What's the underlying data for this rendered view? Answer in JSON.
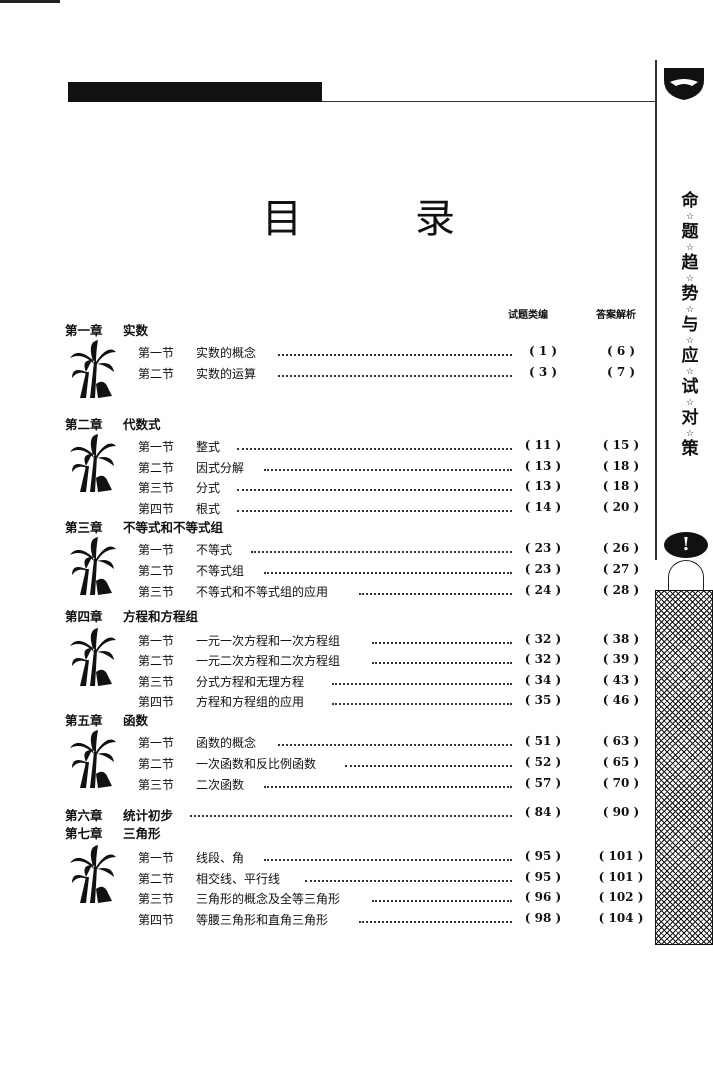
{
  "page": {
    "title_left": "目",
    "title_right": "录",
    "side_banner": [
      "命",
      "题",
      "趋",
      "势",
      "与",
      "应",
      "试",
      "对",
      "策"
    ],
    "side_star": "☆",
    "bubble_mark": "!"
  },
  "columns": {
    "questions": "试题类编",
    "answers": "答案解析"
  },
  "chapters": [
    {
      "label": "第一章",
      "title": "实数",
      "sections": [
        {
          "label": "第一节",
          "title": "实数的概念",
          "q": "( 1 )",
          "a": "( 6 )"
        },
        {
          "label": "第二节",
          "title": "实数的运算",
          "q": "( 3 )",
          "a": "( 7 )"
        }
      ]
    },
    {
      "label": "第二章",
      "title": "代数式",
      "sections": [
        {
          "label": "第一节",
          "title": "整式",
          "q": "( 11 )",
          "a": "( 15 )"
        },
        {
          "label": "第二节",
          "title": "因式分解",
          "q": "( 13 )",
          "a": "( 18 )"
        },
        {
          "label": "第三节",
          "title": "分式",
          "q": "( 13 )",
          "a": "( 18 )"
        },
        {
          "label": "第四节",
          "title": "根式",
          "q": "( 14 )",
          "a": "( 20 )"
        }
      ]
    },
    {
      "label": "第三章",
      "title": "不等式和不等式组",
      "sections": [
        {
          "label": "第一节",
          "title": "不等式",
          "q": "( 23 )",
          "a": "( 26 )"
        },
        {
          "label": "第二节",
          "title": "不等式组",
          "q": "( 23 )",
          "a": "( 27 )"
        },
        {
          "label": "第三节",
          "title": "不等式和不等式组的应用",
          "q": "( 24 )",
          "a": "( 28 )"
        }
      ]
    },
    {
      "label": "第四章",
      "title": "方程和方程组",
      "sections": [
        {
          "label": "第一节",
          "title": "一元一次方程和一次方程组",
          "q": "( 32 )",
          "a": "( 38 )"
        },
        {
          "label": "第二节",
          "title": "一元二次方程和二次方程组",
          "q": "( 32 )",
          "a": "( 39 )"
        },
        {
          "label": "第三节",
          "title": "分式方程和无理方程",
          "q": "( 34 )",
          "a": "( 43 )"
        },
        {
          "label": "第四节",
          "title": "方程和方程组的应用",
          "q": "( 35 )",
          "a": "( 46 )"
        }
      ]
    },
    {
      "label": "第五章",
      "title": "函数",
      "sections": [
        {
          "label": "第一节",
          "title": "函数的概念",
          "q": "( 51 )",
          "a": "( 63 )"
        },
        {
          "label": "第二节",
          "title": "一次函数和反比例函数",
          "q": "( 52 )",
          "a": "( 65 )"
        },
        {
          "label": "第三节",
          "title": "二次函数",
          "q": "( 57 )",
          "a": "( 70 )"
        }
      ]
    },
    {
      "label": "第六章",
      "title": "统计初步",
      "q": "( 84 )",
      "a": "( 90 )",
      "sections": []
    },
    {
      "label": "第七章",
      "title": "三角形",
      "sections": [
        {
          "label": "第一节",
          "title": "线段、角",
          "q": "( 95 )",
          "a": "( 101 )"
        },
        {
          "label": "第二节",
          "title": "相交线、平行线",
          "q": "( 95 )",
          "a": "( 101 )"
        },
        {
          "label": "第三节",
          "title": "三角形的概念及全等三角形",
          "q": "( 96 )",
          "a": "( 102 )"
        },
        {
          "label": "第四节",
          "title": "等腰三角形和直角三角形",
          "q": "( 98 )",
          "a": "( 104 )"
        }
      ]
    }
  ]
}
